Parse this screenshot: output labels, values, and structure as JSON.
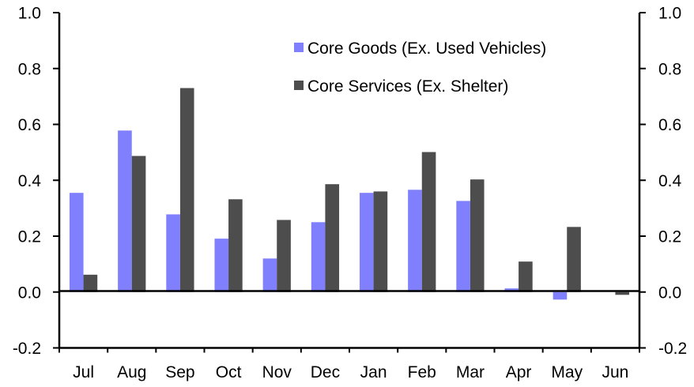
{
  "chart_data": {
    "type": "bar",
    "title": "",
    "xlabel": "",
    "ylabel": "",
    "ylim": [
      -0.2,
      1.0
    ],
    "yticks": [
      "1.0",
      "0.8",
      "0.6",
      "0.4",
      "0.2",
      "0.0",
      "-0.2"
    ],
    "ytick_values": [
      1.0,
      0.8,
      0.6,
      0.4,
      0.2,
      0.0,
      -0.2
    ],
    "right_axis": {
      "ylim": [
        -0.2,
        1.0
      ],
      "yticks": [
        "1.0",
        "0.8",
        "0.6",
        "0.4",
        "0.2",
        "0.0",
        "-0.2"
      ]
    },
    "grid": false,
    "legend_position": "top-center",
    "categories": [
      "Jul",
      "Aug",
      "Sep",
      "Oct",
      "Nov",
      "Dec",
      "Jan",
      "Feb",
      "Mar",
      "Apr",
      "May",
      "Jun"
    ],
    "series": [
      {
        "name": "Core Goods (Ex. Used Vehicles)",
        "color": "#8080FF",
        "values": [
          0.355,
          0.578,
          0.278,
          0.191,
          0.12,
          0.25,
          0.355,
          0.366,
          0.326,
          0.013,
          -0.027,
          null
        ]
      },
      {
        "name": "Core Services (Ex. Shelter)",
        "color": "#4D4D4D",
        "values": [
          0.062,
          0.487,
          0.73,
          0.332,
          0.258,
          0.386,
          0.36,
          0.501,
          0.403,
          0.109,
          0.233,
          -0.01
        ]
      }
    ]
  }
}
